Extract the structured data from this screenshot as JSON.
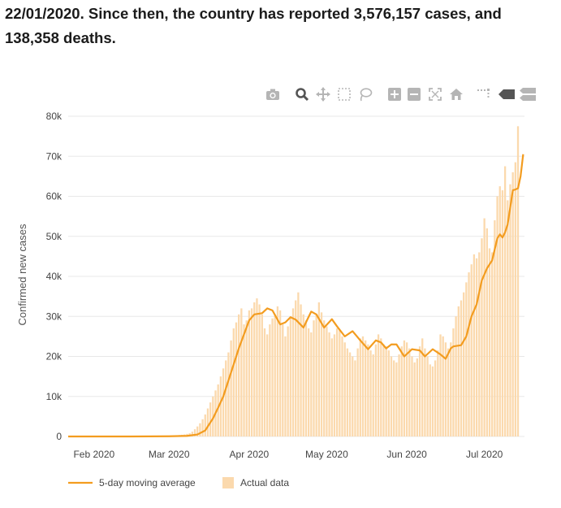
{
  "intro": {
    "line1": "22/01/2020. Since then, the country has reported 3,576,157 cases, and",
    "line2": "138,358 deaths."
  },
  "modebar": [
    {
      "name": "camera-icon",
      "title": "Download plot as a png"
    },
    {
      "name": "zoom-icon",
      "title": "Zoom"
    },
    {
      "name": "pan-icon",
      "title": "Pan"
    },
    {
      "name": "box-select-icon",
      "title": "Box Select"
    },
    {
      "name": "lasso-select-icon",
      "title": "Lasso Select"
    },
    {
      "name": "zoom-in-icon",
      "title": "Zoom in"
    },
    {
      "name": "zoom-out-icon",
      "title": "Zoom out"
    },
    {
      "name": "autoscale-icon",
      "title": "Autoscale"
    },
    {
      "name": "reset-axes-icon",
      "title": "Reset axes"
    },
    {
      "name": "spike-lines-icon",
      "title": "Toggle Spike Lines"
    },
    {
      "name": "hover-closest-icon",
      "title": "Show closest data on hover"
    },
    {
      "name": "hover-compare-icon",
      "title": "Compare data on hover"
    }
  ],
  "colors": {
    "line": "#f39c1f",
    "bars": "#fbd9ad",
    "grid": "#e8e8e8",
    "icon": "#b5b5b5",
    "icon_active": "#555555"
  },
  "chart_data": {
    "type": "bar",
    "ylabel": "Confirmed new cases",
    "xlabel": "",
    "ylim": [
      0,
      80000
    ],
    "y_ticks": [
      0,
      10000,
      20000,
      30000,
      40000,
      50000,
      60000,
      70000,
      80000
    ],
    "y_tick_labels": [
      "0",
      "10k",
      "20k",
      "30k",
      "40k",
      "50k",
      "60k",
      "70k",
      "80k"
    ],
    "x_range": [
      "2020-01-22",
      "2020-07-16"
    ],
    "x_ticks": [
      "2020-02-01",
      "2020-03-01",
      "2020-04-01",
      "2020-05-01",
      "2020-06-01",
      "2020-07-01"
    ],
    "x_tick_labels": [
      "Feb 2020",
      "Mar 2020",
      "Apr 2020",
      "May 2020",
      "Jun 2020",
      "Jul 2020"
    ],
    "grid": true,
    "legend_position": "bottom-left",
    "series": [
      {
        "name": "5-day moving average",
        "type": "line",
        "points": [
          [
            "2020-01-22",
            0
          ],
          [
            "2020-02-15",
            0
          ],
          [
            "2020-03-01",
            50
          ],
          [
            "2020-03-08",
            150
          ],
          [
            "2020-03-12",
            500
          ],
          [
            "2020-03-15",
            1500
          ],
          [
            "2020-03-18",
            4500
          ],
          [
            "2020-03-20",
            7200
          ],
          [
            "2020-03-22",
            10000
          ],
          [
            "2020-03-25",
            16000
          ],
          [
            "2020-03-28",
            22000
          ],
          [
            "2020-04-01",
            29000
          ],
          [
            "2020-04-03",
            30500
          ],
          [
            "2020-04-06",
            30800
          ],
          [
            "2020-04-08",
            32000
          ],
          [
            "2020-04-10",
            31500
          ],
          [
            "2020-04-13",
            28000
          ],
          [
            "2020-04-15",
            28500
          ],
          [
            "2020-04-17",
            29800
          ],
          [
            "2020-04-19",
            29200
          ],
          [
            "2020-04-22",
            27200
          ],
          [
            "2020-04-25",
            31200
          ],
          [
            "2020-04-27",
            30500
          ],
          [
            "2020-04-30",
            27200
          ],
          [
            "2020-05-03",
            29300
          ],
          [
            "2020-05-05",
            27500
          ],
          [
            "2020-05-08",
            25000
          ],
          [
            "2020-05-11",
            26300
          ],
          [
            "2020-05-14",
            24000
          ],
          [
            "2020-05-17",
            21800
          ],
          [
            "2020-05-20",
            24000
          ],
          [
            "2020-05-22",
            23500
          ],
          [
            "2020-05-24",
            22000
          ],
          [
            "2020-05-26",
            23000
          ],
          [
            "2020-05-28",
            23000
          ],
          [
            "2020-05-31",
            20000
          ],
          [
            "2020-06-03",
            21800
          ],
          [
            "2020-06-06",
            21500
          ],
          [
            "2020-06-08",
            20000
          ],
          [
            "2020-06-11",
            21800
          ],
          [
            "2020-06-14",
            20500
          ],
          [
            "2020-06-16",
            19400
          ],
          [
            "2020-06-18",
            22000
          ],
          [
            "2020-06-19",
            22500
          ],
          [
            "2020-06-22",
            22800
          ],
          [
            "2020-06-24",
            25000
          ],
          [
            "2020-06-26",
            30000
          ],
          [
            "2020-06-28",
            33000
          ],
          [
            "2020-06-30",
            39000
          ],
          [
            "2020-07-02",
            42000
          ],
          [
            "2020-07-04",
            44000
          ],
          [
            "2020-07-06",
            49500
          ],
          [
            "2020-07-07",
            50500
          ],
          [
            "2020-07-08",
            49700
          ],
          [
            "2020-07-09",
            51000
          ],
          [
            "2020-07-10",
            53000
          ],
          [
            "2020-07-12",
            61500
          ],
          [
            "2020-07-13",
            61700
          ],
          [
            "2020-07-14",
            62000
          ],
          [
            "2020-07-15",
            65000
          ],
          [
            "2020-07-16",
            70500
          ]
        ]
      },
      {
        "name": "Actual data",
        "type": "bar",
        "start_date": "2020-02-21",
        "values": [
          50,
          60,
          70,
          80,
          90,
          100,
          120,
          140,
          160,
          180,
          200,
          250,
          300,
          350,
          420,
          500,
          650,
          800,
          1200,
          1800,
          2500,
          3300,
          4300,
          5500,
          7000,
          8500,
          10000,
          11500,
          13000,
          15000,
          17000,
          19000,
          21000,
          24000,
          27000,
          28500,
          30500,
          32000,
          28000,
          29000,
          31500,
          32000,
          33500,
          34500,
          33000,
          30500,
          27000,
          25500,
          28000,
          29500,
          30500,
          32500,
          31500,
          28000,
          25000,
          27500,
          30000,
          32000,
          34000,
          36000,
          33000,
          30500,
          29000,
          27000,
          26000,
          29000,
          30500,
          33500,
          31000,
          29000,
          27500,
          26000,
          24500,
          25500,
          27000,
          26500,
          25000,
          23500,
          22000,
          21000,
          20000,
          19000,
          22000,
          24500,
          25000,
          24000,
          23000,
          21500,
          20500,
          23000,
          25500,
          24500,
          23000,
          22500,
          21500,
          20000,
          19000,
          18500,
          20500,
          22500,
          24000,
          23500,
          22000,
          20000,
          18500,
          19500,
          22500,
          24500,
          22000,
          20000,
          18000,
          17500,
          19000,
          21500,
          25500,
          25000,
          23500,
          22000,
          23500,
          27000,
          30000,
          32500,
          34000,
          36000,
          38500,
          41000,
          43000,
          45500,
          44500,
          46000,
          49500,
          54500,
          52000,
          47000,
          46000,
          54000,
          60000,
          62500,
          61500,
          67500,
          59000,
          63000,
          66000,
          68500,
          77500
        ]
      }
    ]
  }
}
